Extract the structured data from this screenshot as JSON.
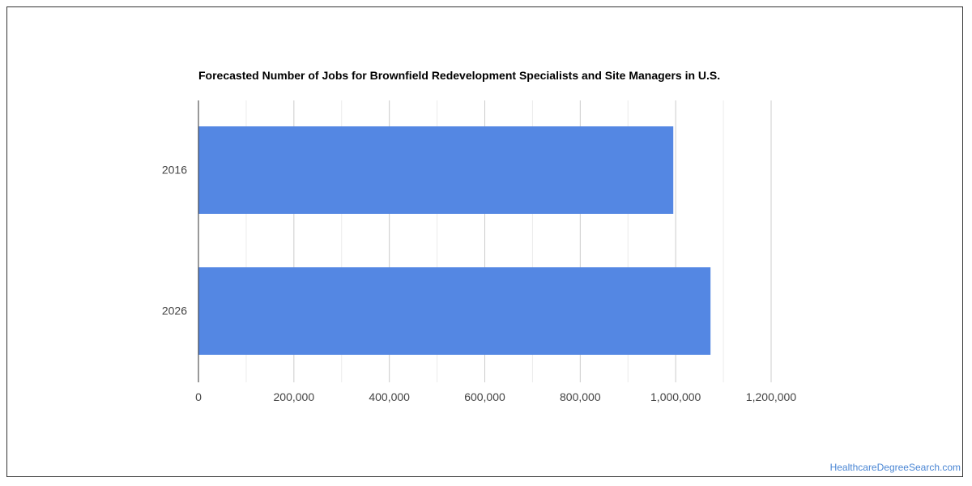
{
  "chart_data": {
    "type": "bar",
    "orientation": "horizontal",
    "title": "Forecasted Number of Jobs for Brownfield Redevelopment Specialists and Site Managers in U.S.",
    "categories": [
      "2016",
      "2026"
    ],
    "values": [
      995000,
      1073000
    ],
    "xlim": [
      0,
      1200000
    ],
    "x_ticks": [
      0,
      200000,
      400000,
      600000,
      800000,
      1000000,
      1200000
    ],
    "x_tick_labels": [
      "0",
      "200,000",
      "400,000",
      "600,000",
      "800,000",
      "1,000,000",
      "1,200,000"
    ],
    "grid": true,
    "bar_color": "#5487e3"
  },
  "watermark": "HealthcareDegreeSearch.com"
}
